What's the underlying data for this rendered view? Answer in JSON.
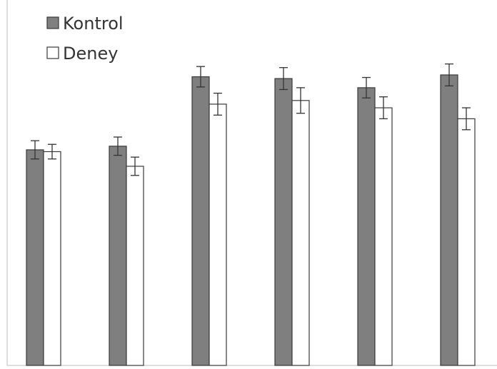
{
  "chart_data": {
    "type": "bar",
    "categories": [
      "",
      "",
      "",
      "",
      "",
      ""
    ],
    "series": [
      {
        "name": "Kontrol",
        "color": "#7f7f7f",
        "values": [
          0.59,
          0.6,
          0.79,
          0.785,
          0.76,
          0.795
        ],
        "errors": [
          0.025,
          0.025,
          0.028,
          0.03,
          0.028,
          0.03
        ]
      },
      {
        "name": "Deney",
        "color": "#ffffff",
        "values": [
          0.585,
          0.545,
          0.715,
          0.725,
          0.705,
          0.675
        ],
        "errors": [
          0.02,
          0.025,
          0.03,
          0.035,
          0.03,
          0.03
        ]
      }
    ],
    "ylim": [
      0,
      1
    ],
    "grid": false,
    "legend": "top-left",
    "title": "",
    "xlabel": "",
    "ylabel": ""
  }
}
